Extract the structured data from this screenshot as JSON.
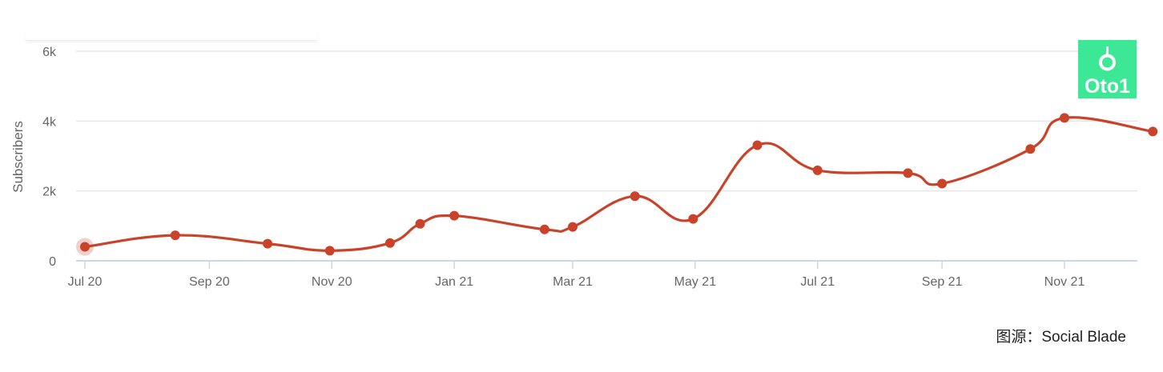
{
  "chart_data": {
    "type": "line",
    "ylabel": "Subscribers",
    "x": [
      "2020-07-01",
      "2020-08-15",
      "2020-09-30",
      "2020-10-31",
      "2020-11-30",
      "2020-12-15",
      "2021-01-01",
      "2021-02-15",
      "2021-03-01",
      "2021-04-01",
      "2021-04-30",
      "2021-06-01",
      "2021-07-01",
      "2021-08-15",
      "2021-09-01",
      "2021-10-15",
      "2021-11-01",
      "2021-12-15"
    ],
    "series": [
      {
        "values": [
          400,
          730,
          490,
          290,
          510,
          1060,
          1290,
          900,
          970,
          1850,
          1200,
          3310,
          2590,
          2510,
          2210,
          3200,
          4090,
          3700
        ]
      }
    ],
    "x_ticks": [
      "Jul 20",
      "Sep 20",
      "Nov 20",
      "Jan 21",
      "Mar 21",
      "May 21",
      "Jul 21",
      "Sep 21",
      "Nov 21"
    ],
    "y_ticks": [
      "0",
      "2k",
      "4k",
      "6k"
    ],
    "ylim": [
      0,
      6000
    ],
    "grid": true,
    "legend": "none",
    "line_color": "#c9432a"
  },
  "source_text": "图源：Social Blade",
  "logo_text": "Oto1",
  "logo_color": "#3ce896"
}
